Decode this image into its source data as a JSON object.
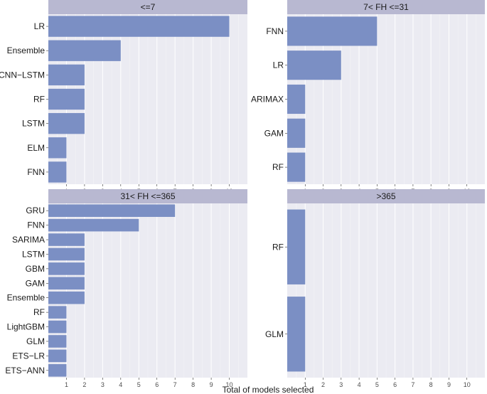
{
  "chart_data": {
    "type": "bar",
    "orientation": "horizontal",
    "xlabel": "Total of models selected",
    "xlim": [
      0,
      11
    ],
    "x_ticks": [
      1,
      2,
      3,
      4,
      5,
      6,
      7,
      8,
      9,
      10
    ],
    "grid": true,
    "colors": {
      "bar": "#7b8fc4",
      "panel": "#ebebf2",
      "strip": "#b8b8d1",
      "grid": "#ffffff"
    },
    "panels": [
      {
        "title": "<=7",
        "categories": [
          "LR",
          "Ensemble",
          "CNN−LSTM",
          "RF",
          "LSTM",
          "ELM",
          "FNN"
        ],
        "values": [
          10,
          4,
          2,
          2,
          2,
          1,
          1
        ]
      },
      {
        "title": "7< FH <=31",
        "categories": [
          "FNN",
          "LR",
          "ARIMAX",
          "GAM",
          "RF"
        ],
        "values": [
          5,
          3,
          1,
          1,
          1
        ]
      },
      {
        "title": "31< FH <=365",
        "categories": [
          "GRU",
          "FNN",
          "SARIMA",
          "LSTM",
          "GBM",
          "GAM",
          "Ensemble",
          "RF",
          "LightGBM",
          "GLM",
          "ETS−LR",
          "ETS−ANN"
        ],
        "values": [
          7,
          5,
          2,
          2,
          2,
          2,
          2,
          1,
          1,
          1,
          1,
          1
        ]
      },
      {
        "title": ">365",
        "categories": [
          "RF",
          "GLM"
        ],
        "values": [
          1,
          1
        ]
      }
    ]
  }
}
